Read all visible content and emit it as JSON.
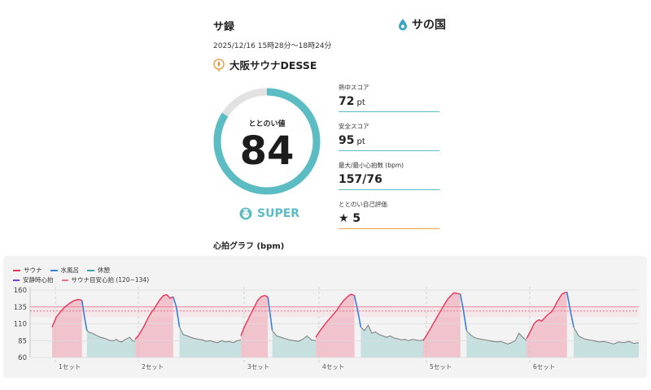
{
  "header": {
    "title": "サ録",
    "logo_text": "サの国"
  },
  "session": {
    "datetime": "2025/12/16 15時28分〜18時24分",
    "facility": "大阪サウナDESSE"
  },
  "totonoi": {
    "label": "ととのい値",
    "value": "84",
    "fraction": 0.84,
    "rank": "SUPER"
  },
  "scores": [
    {
      "label": "熱中スコア",
      "value": "72",
      "unit": "pt"
    },
    {
      "label": "安全スコア",
      "value": "95",
      "unit": "pt"
    },
    {
      "label": "最大/最小心拍数 (bpm)",
      "value": "157/76",
      "unit": ""
    },
    {
      "label": "ととのい自己評価",
      "value": "★ 5",
      "unit": ""
    }
  ],
  "graph_title": "心拍グラフ (bpm)",
  "colors": {
    "sauna": "#e8355a",
    "water": "#3d7fd6",
    "rest": "#3fa6a8",
    "resting": "#7b3fe0",
    "guide": "#f06d86"
  },
  "chart_data": {
    "type": "line",
    "legend": {
      "sauna": "サウナ",
      "water": "水風呂",
      "rest": "休憩",
      "resting": "安静時心拍",
      "guide": "サウナ目安心拍 (120~134)"
    },
    "y_ticks": [
      "160",
      "135",
      "110",
      "85",
      "60"
    ],
    "ylim": [
      60,
      160
    ],
    "guide_range": [
      120,
      134
    ],
    "sets": [
      {
        "label": "1セット",
        "sauna": [
          105,
          120,
          128,
          135,
          140,
          144,
          146,
          145
        ],
        "water": [
          145,
          120,
          100
        ],
        "rest": [
          100,
          97,
          96,
          94,
          92,
          90,
          89,
          88,
          86,
          85,
          85,
          87,
          84,
          83,
          86,
          88,
          90,
          85,
          84
        ]
      },
      {
        "label": "2セット",
        "sauna": [
          87,
          92,
          100,
          108,
          118,
          126,
          132,
          140,
          147,
          152,
          153,
          148,
          150
        ],
        "water": [
          150,
          135,
          105
        ],
        "rest": [
          105,
          94,
          92,
          90,
          88,
          87,
          86,
          84,
          85,
          83,
          82,
          85,
          83,
          84,
          82,
          85,
          86
        ]
      },
      {
        "label": "3セット",
        "sauna": [
          92,
          105,
          115,
          125,
          135,
          145,
          150,
          152,
          150
        ],
        "water": [
          150,
          125,
          100
        ],
        "rest": [
          100,
          92,
          90,
          88,
          86,
          85,
          84,
          87,
          92,
          86,
          85
        ]
      },
      {
        "label": "4セット",
        "sauna": [
          90,
          98,
          105,
          112,
          118,
          124,
          130,
          138,
          145,
          150,
          154,
          152
        ],
        "water": [
          152,
          130,
          105
        ],
        "rest": [
          105,
          100,
          108,
          96,
          98,
          94,
          92,
          90,
          92,
          89,
          88,
          86,
          87,
          85,
          87,
          86,
          85,
          86
        ]
      },
      {
        "label": "5セット",
        "sauna": [
          85,
          92,
          100,
          108,
          116,
          124,
          132,
          140,
          147,
          152,
          156,
          155,
          154
        ],
        "water": [
          154,
          130,
          100
        ],
        "rest": [
          100,
          94,
          90,
          88,
          87,
          86,
          85,
          84,
          83,
          84,
          82,
          80,
          82,
          85,
          96,
          90,
          85
        ]
      },
      {
        "label": "6セット",
        "sauna": [
          88,
          95,
          102,
          110,
          114,
          116,
          114,
          118,
          122,
          125,
          128,
          134,
          142,
          148,
          154,
          156,
          157
        ],
        "water": [
          157,
          130,
          105
        ],
        "rest": [
          105,
          92,
          88,
          86,
          85,
          83,
          84,
          82,
          80,
          83,
          82,
          84,
          81,
          82
        ]
      }
    ]
  }
}
